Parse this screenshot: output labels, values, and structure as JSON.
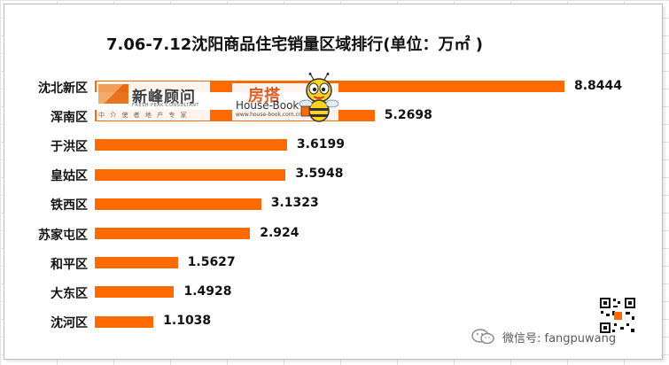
{
  "chart_data": {
    "type": "bar",
    "orientation": "horizontal",
    "title": "7.06-7.12沈阳商品住宅销量区域排行(单位：万㎡ )",
    "categories": [
      "沈北新区",
      "浑南区",
      "于洪区",
      "皇姑区",
      "铁西区",
      "苏家屯区",
      "和平区",
      "大东区",
      "沈河区"
    ],
    "values": [
      8.8444,
      5.2698,
      3.6199,
      3.5948,
      3.1323,
      2.924,
      1.5627,
      1.4928,
      1.1038
    ],
    "value_labels": [
      "8.8444",
      "5.2698",
      "3.6199",
      "3.5948",
      "3.1323",
      "2.924",
      "1.5627",
      "1.4928",
      "1.1038"
    ],
    "xlim": [
      0,
      8.8444
    ],
    "grid": false,
    "legend": "none",
    "bar_color": "#ff6a00"
  },
  "logos": {
    "xinfeng": {
      "name": "新峰顾问",
      "en": "FRESH PEAK CONSULTANT",
      "slogan": "中 介 使 者   地 产 专 家"
    },
    "housebook": {
      "cn": "房搭",
      "en": "House-Book",
      "url": "www.house-book.com.cn"
    }
  },
  "footer": {
    "wechat_text": "微信号: fangpuwang",
    "icon": "wechat-icon",
    "qr": "qr-code"
  },
  "colors": {
    "bar": "#ff6a00",
    "text": "#111111",
    "grid": "#e3e3e3"
  }
}
